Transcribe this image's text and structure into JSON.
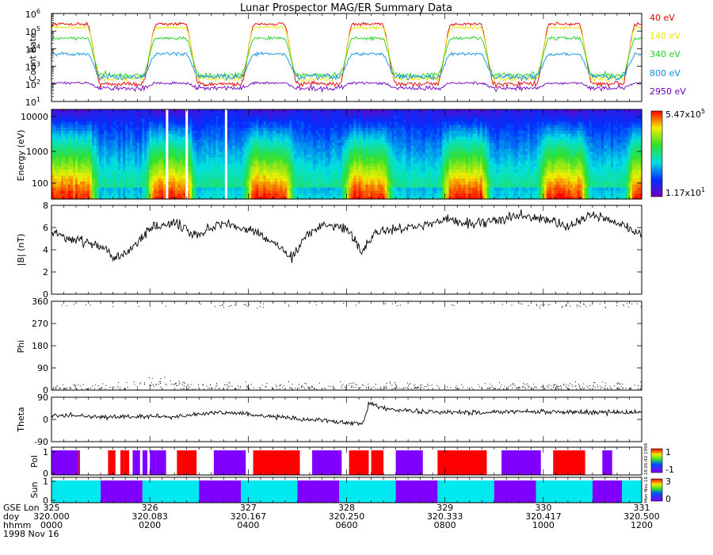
{
  "title": "Lunar Prospector MAG/ER Summary Data",
  "stamp": "Mon Nov 16 18:26:42 1998",
  "colors": {
    "c40": "#e00000",
    "c140": "#e8e800",
    "c340": "#20d020",
    "c800": "#1090e0",
    "c2950": "#7000c0",
    "pol_pos": "#ff0000",
    "pol_neg": "#8000ff",
    "sun_day": "#00e8f0",
    "sun_night": "#8000ff"
  },
  "chart_data": [
    {
      "type": "line",
      "panel": "count_rate",
      "ylabel": "Count Rate",
      "yscale": "log",
      "ylim_exp": [
        1,
        6
      ],
      "y_ticks": [
        {
          "base": "10",
          "exp": "1"
        },
        {
          "base": "10",
          "exp": "2"
        },
        {
          "base": "10",
          "exp": "3"
        },
        {
          "base": "10",
          "exp": "4"
        },
        {
          "base": "10",
          "exp": "5"
        },
        {
          "base": "10",
          "exp": "6"
        }
      ],
      "legend_position": "right",
      "series": [
        {
          "name": "40 eV",
          "day_log": 5.4,
          "night_log": 2.0
        },
        {
          "name": "140 eV",
          "day_log": 5.2,
          "night_log": 2.3
        },
        {
          "name": "340 eV",
          "day_log": 4.6,
          "night_log": 2.5
        },
        {
          "name": "800 eV",
          "day_log": 3.7,
          "night_log": 2.4
        },
        {
          "name": "2950 eV",
          "day_log": 2.05,
          "night_log": 1.75
        }
      ]
    },
    {
      "type": "heatmap",
      "panel": "spectrogram",
      "ylabel": "Energy (eV)",
      "y_ticks": [
        "100",
        "1000",
        "10000"
      ],
      "colorbar": {
        "max_base": "5.47x10",
        "max_exp": "5",
        "min_base": "1.17x10",
        "min_exp": "1"
      },
      "data_gaps_hours": [
        2.35,
        2.75,
        3.55
      ]
    },
    {
      "type": "line",
      "panel": "B",
      "ylabel": "|B| (nT)",
      "ylim": [
        0,
        8
      ],
      "y_ticks": [
        "0",
        "2",
        "4",
        "6",
        "8"
      ],
      "key_points": [
        [
          0,
          5.5
        ],
        [
          0.5,
          5.0
        ],
        [
          1.0,
          4.3
        ],
        [
          1.3,
          3.2
        ],
        [
          1.6,
          3.8
        ],
        [
          2.0,
          6.0
        ],
        [
          2.5,
          6.4
        ],
        [
          3.0,
          5.3
        ],
        [
          3.5,
          6.5
        ],
        [
          4.0,
          5.8
        ],
        [
          4.5,
          4.7
        ],
        [
          4.9,
          3.3
        ],
        [
          5.2,
          5.4
        ],
        [
          5.5,
          6.2
        ],
        [
          6.0,
          6.0
        ],
        [
          6.3,
          3.8
        ],
        [
          6.6,
          5.6
        ],
        [
          7.0,
          5.9
        ],
        [
          7.5,
          6.0
        ],
        [
          8.0,
          6.8
        ],
        [
          8.5,
          6.3
        ],
        [
          9.0,
          6.7
        ],
        [
          9.5,
          7.1
        ],
        [
          10.0,
          6.8
        ],
        [
          10.5,
          6.0
        ],
        [
          11.0,
          7.2
        ],
        [
          11.5,
          6.4
        ],
        [
          12.0,
          5.4
        ]
      ]
    },
    {
      "type": "scatter",
      "panel": "Phi",
      "ylabel": "Phi",
      "ylim": [
        0,
        360
      ],
      "y_ticks": [
        "0",
        "90",
        "180",
        "270",
        "360"
      ]
    },
    {
      "type": "line",
      "panel": "Theta",
      "ylabel": "Theta",
      "ylim": [
        -90,
        90
      ],
      "y_ticks": [
        "-90",
        "0",
        "90"
      ],
      "key_points": [
        [
          0,
          15
        ],
        [
          0.5,
          18
        ],
        [
          1.0,
          8
        ],
        [
          1.5,
          10
        ],
        [
          2.0,
          12
        ],
        [
          2.5,
          10
        ],
        [
          3.0,
          22
        ],
        [
          3.5,
          28
        ],
        [
          4.0,
          22
        ],
        [
          4.5,
          12
        ],
        [
          5.0,
          4
        ],
        [
          5.5,
          -5
        ],
        [
          6.0,
          -12
        ],
        [
          6.35,
          -15
        ],
        [
          6.45,
          70
        ],
        [
          6.8,
          42
        ],
        [
          7.5,
          32
        ],
        [
          8.5,
          28
        ],
        [
          9.5,
          32
        ],
        [
          10.5,
          30
        ],
        [
          11.5,
          28
        ],
        [
          12.0,
          30
        ]
      ]
    },
    {
      "type": "bar",
      "panel": "Pol",
      "ylabel": "Pol",
      "y_ticks": [
        "0",
        "1"
      ],
      "colorbar_ticks": [
        "1",
        "-1"
      ],
      "segments": [
        {
          "start": 0.0,
          "end": 0.55,
          "value": -1
        },
        {
          "start": 0.55,
          "end": 0.58,
          "value": 1
        },
        {
          "start": 1.15,
          "end": 1.3,
          "value": 1
        },
        {
          "start": 1.4,
          "end": 1.48,
          "value": 1
        },
        {
          "start": 1.48,
          "end": 1.58,
          "value": 1
        },
        {
          "start": 1.65,
          "end": 1.8,
          "value": -1
        },
        {
          "start": 1.85,
          "end": 1.95,
          "value": -1
        },
        {
          "start": 2.0,
          "end": 2.12,
          "value": -1
        },
        {
          "start": 2.12,
          "end": 2.33,
          "value": -1
        },
        {
          "start": 2.55,
          "end": 2.95,
          "value": 1
        },
        {
          "start": 3.3,
          "end": 3.95,
          "value": -1
        },
        {
          "start": 4.1,
          "end": 5.05,
          "value": 1
        },
        {
          "start": 5.3,
          "end": 5.9,
          "value": -1
        },
        {
          "start": 6.05,
          "end": 6.45,
          "value": 1
        },
        {
          "start": 6.5,
          "end": 6.75,
          "value": 1
        },
        {
          "start": 7.0,
          "end": 7.55,
          "value": -1
        },
        {
          "start": 7.85,
          "end": 8.85,
          "value": 1
        },
        {
          "start": 9.15,
          "end": 9.95,
          "value": -1
        },
        {
          "start": 10.2,
          "end": 10.85,
          "value": 1
        },
        {
          "start": 11.2,
          "end": 11.4,
          "value": -1
        }
      ]
    },
    {
      "type": "bar",
      "panel": "Sun",
      "ylabel": "Sun",
      "y_ticks": [
        "0",
        "1"
      ],
      "colorbar_ticks": [
        "3",
        "0"
      ],
      "segments": [
        {
          "start": 0.0,
          "end": 1.0,
          "state": "day"
        },
        {
          "start": 1.0,
          "end": 1.85,
          "state": "night"
        },
        {
          "start": 1.85,
          "end": 3.0,
          "state": "day"
        },
        {
          "start": 3.0,
          "end": 3.85,
          "state": "night"
        },
        {
          "start": 3.85,
          "end": 5.0,
          "state": "day"
        },
        {
          "start": 5.0,
          "end": 5.85,
          "state": "night"
        },
        {
          "start": 5.85,
          "end": 7.0,
          "state": "day"
        },
        {
          "start": 7.0,
          "end": 7.85,
          "state": "night"
        },
        {
          "start": 7.85,
          "end": 9.0,
          "state": "day"
        },
        {
          "start": 9.0,
          "end": 9.85,
          "state": "night"
        },
        {
          "start": 9.85,
          "end": 11.0,
          "state": "day"
        },
        {
          "start": 11.0,
          "end": 11.6,
          "state": "night"
        },
        {
          "start": 11.6,
          "end": 12.0,
          "state": "day"
        }
      ]
    }
  ],
  "x_axis": {
    "row_labels": [
      "GSE Lon",
      "doy",
      "hhmm",
      "1998 Nov 16"
    ],
    "ticks": [
      {
        "hour": 0,
        "lon": "325",
        "doy": "320.000",
        "hhmm": "0000"
      },
      {
        "hour": 2,
        "lon": "326",
        "doy": "320.083",
        "hhmm": "0200"
      },
      {
        "hour": 4,
        "lon": "327",
        "doy": "320.167",
        "hhmm": "0400"
      },
      {
        "hour": 6,
        "lon": "328",
        "doy": "320.250",
        "hhmm": "0600"
      },
      {
        "hour": 8,
        "lon": "329",
        "doy": "320.333",
        "hhmm": "0800"
      },
      {
        "hour": 10,
        "lon": "330",
        "doy": "320.417",
        "hhmm": "1000"
      },
      {
        "hour": 12,
        "lon": "331",
        "doy": "320.500",
        "hhmm": "1200"
      }
    ],
    "range_hours": [
      0,
      12
    ]
  }
}
